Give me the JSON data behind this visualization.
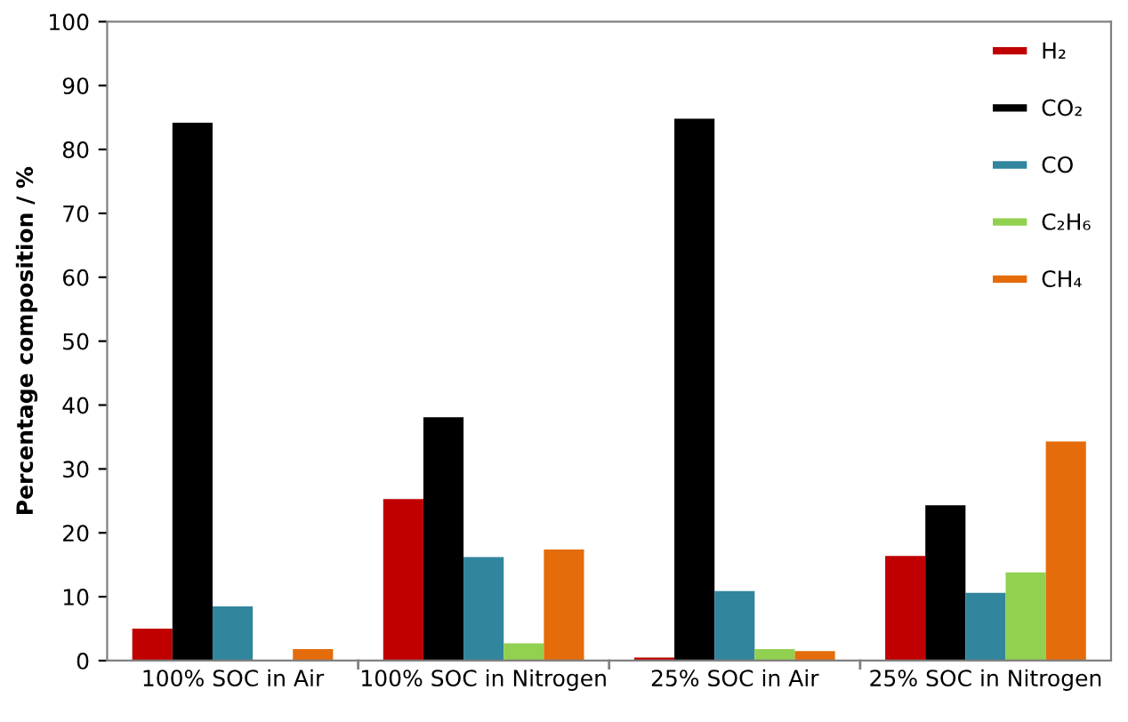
{
  "chart_data": {
    "type": "bar",
    "ylabel": "Percentage composition / %",
    "categories": [
      "100% SOC in Air",
      "100% SOC in Nitrogen",
      "25% SOC in Air",
      "25% SOC in Nitrogen"
    ],
    "series": [
      {
        "name": "H₂",
        "color": "#c00000",
        "values": [
          5.0,
          25.3,
          0.5,
          16.4
        ]
      },
      {
        "name": "CO₂",
        "color": "#000000",
        "values": [
          84.2,
          38.1,
          84.8,
          24.3
        ]
      },
      {
        "name": "CO",
        "color": "#31859c",
        "values": [
          8.5,
          16.2,
          10.9,
          10.6
        ]
      },
      {
        "name": "C₂H₆",
        "color": "#92d050",
        "values": [
          null,
          2.7,
          1.8,
          13.8
        ]
      },
      {
        "name": "CH₄",
        "color": "#e46c0a",
        "values": [
          1.8,
          17.4,
          1.5,
          34.3
        ]
      }
    ],
    "ylim": [
      0,
      100
    ],
    "yticks": [
      0,
      10,
      20,
      30,
      40,
      50,
      60,
      70,
      80,
      90,
      100
    ],
    "grid": false,
    "legend": "top right"
  }
}
